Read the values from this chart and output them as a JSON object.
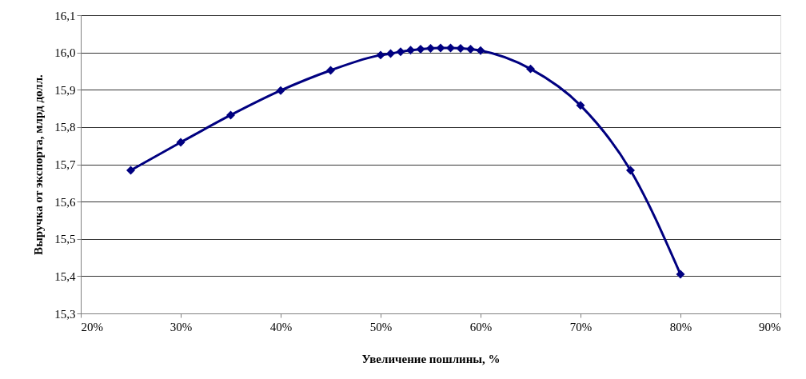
{
  "chart_data": {
    "type": "line",
    "xlabel": "Увеличение пошлины, %",
    "ylabel": "Выручка от экспорта, млрд долл.",
    "x": [
      25,
      30,
      35,
      40,
      45,
      50,
      51,
      52,
      53,
      54,
      55,
      56,
      57,
      58,
      59,
      60,
      65,
      70,
      75,
      80
    ],
    "series": [
      {
        "color": "#000080",
        "values": [
          15.684,
          15.759,
          15.832,
          15.898,
          15.952,
          15.993,
          15.997,
          16.002,
          16.006,
          16.009,
          16.011,
          16.012,
          16.012,
          16.011,
          16.009,
          16.005,
          15.956,
          15.858,
          15.684,
          15.405
        ]
      }
    ],
    "xlim": [
      20,
      90
    ],
    "ylim": [
      15.3,
      16.1
    ],
    "xticks": [
      {
        "value": 20,
        "label": "20%"
      },
      {
        "value": 30,
        "label": "30%"
      },
      {
        "value": 40,
        "label": "40%"
      },
      {
        "value": 50,
        "label": "50%"
      },
      {
        "value": 60,
        "label": "60%"
      },
      {
        "value": 70,
        "label": "70%"
      },
      {
        "value": 80,
        "label": "80%"
      },
      {
        "value": 90,
        "label": "90%"
      }
    ],
    "yticks": [
      {
        "value": 15.3,
        "label": "15,3"
      },
      {
        "value": 15.4,
        "label": "15,4"
      },
      {
        "value": 15.5,
        "label": "15,5"
      },
      {
        "value": 15.6,
        "label": "15,6"
      },
      {
        "value": 15.7,
        "label": "15,7"
      },
      {
        "value": 15.8,
        "label": "15,8"
      },
      {
        "value": 15.9,
        "label": "15,9"
      },
      {
        "value": 16.0,
        "label": "16,0"
      },
      {
        "value": 16.1,
        "label": "16,1"
      }
    ],
    "grid": "y",
    "marker": "diamond",
    "line_style": "solid"
  }
}
